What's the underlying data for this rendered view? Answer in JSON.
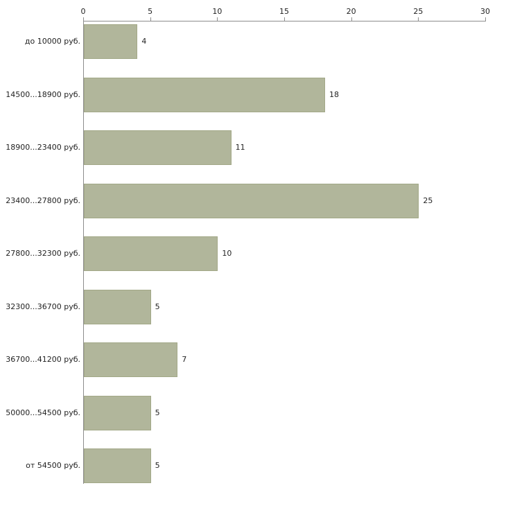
{
  "chart_data": {
    "type": "bar",
    "orientation": "horizontal",
    "title": "",
    "xlabel": "",
    "ylabel": "",
    "xlim": [
      0,
      30
    ],
    "x_ticks": [
      0,
      5,
      10,
      15,
      20,
      25,
      30
    ],
    "grid": false,
    "legend": false,
    "bar_color": "#b1b69b",
    "bar_border_color": "#a2a887",
    "categories": [
      "до 10000 руб.",
      "14500...18900 руб.",
      "18900...23400 руб.",
      "23400...27800 руб.",
      "27800...32300 руб.",
      "32300...36700 руб.",
      "36700...41200 руб.",
      "50000...54500 руб.",
      "от 54500 руб."
    ],
    "values": [
      4,
      18,
      11,
      25,
      10,
      5,
      7,
      5,
      5
    ]
  }
}
